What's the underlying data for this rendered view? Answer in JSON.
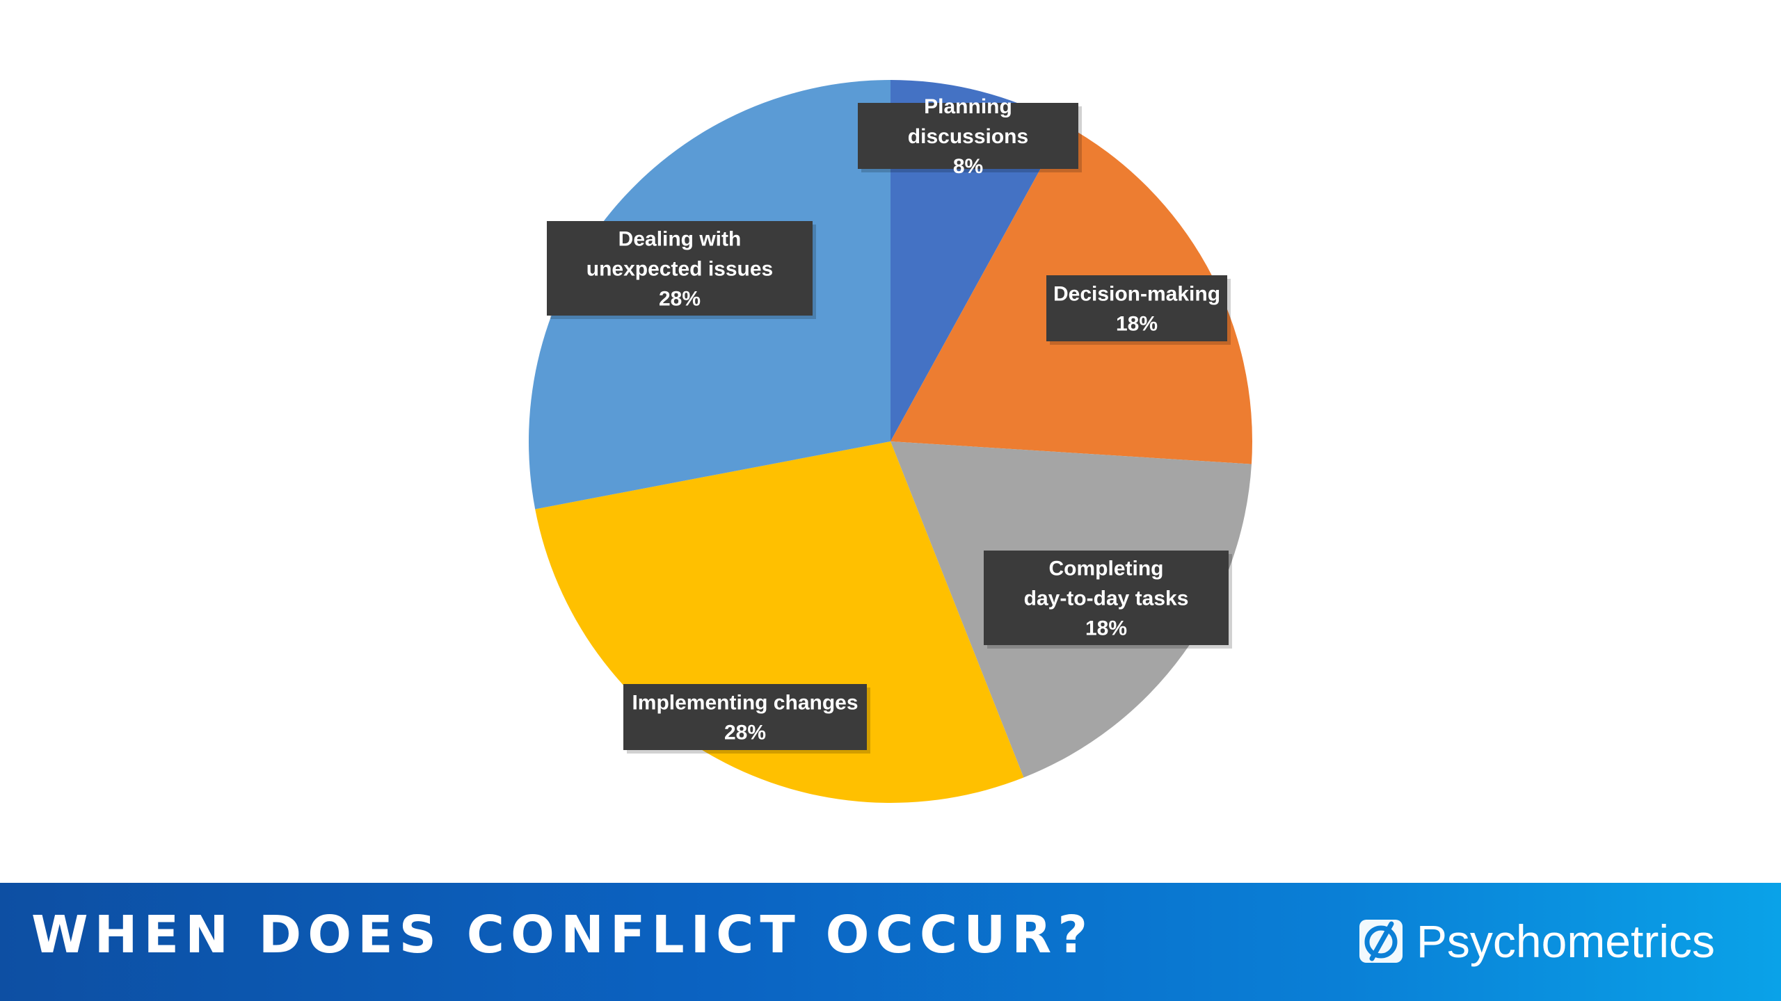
{
  "chart_data": {
    "type": "pie",
    "title": "",
    "start_angle_deg": 0,
    "direction": "clockwise",
    "slices": [
      {
        "label": "Planning discussions",
        "value": 8,
        "value_label": "8%",
        "color": "#4472c4"
      },
      {
        "label": "Decision-making",
        "value": 18,
        "value_label": "18%",
        "color": "#ed7d31"
      },
      {
        "label": "Completing day-to-day tasks",
        "value": 18,
        "value_label": "18%",
        "color": "#a5a5a5"
      },
      {
        "label": "Implementing changes",
        "value": 28,
        "value_label": "28%",
        "color": "#ffc000"
      },
      {
        "label": "Dealing with unexpected issues",
        "value": 28,
        "value_label": "28%",
        "color": "#5b9bd5"
      }
    ],
    "data_label_style": "callout boxes with category name and percentage",
    "legend": "none"
  },
  "footer": {
    "title": "WHEN DOES CONFLICT OCCUR?",
    "brand": "Psychometrics",
    "brand_icon": "psychometrics-logo-icon",
    "gradient_colors": [
      "#0d4fa3",
      "#0aa2e8"
    ]
  }
}
